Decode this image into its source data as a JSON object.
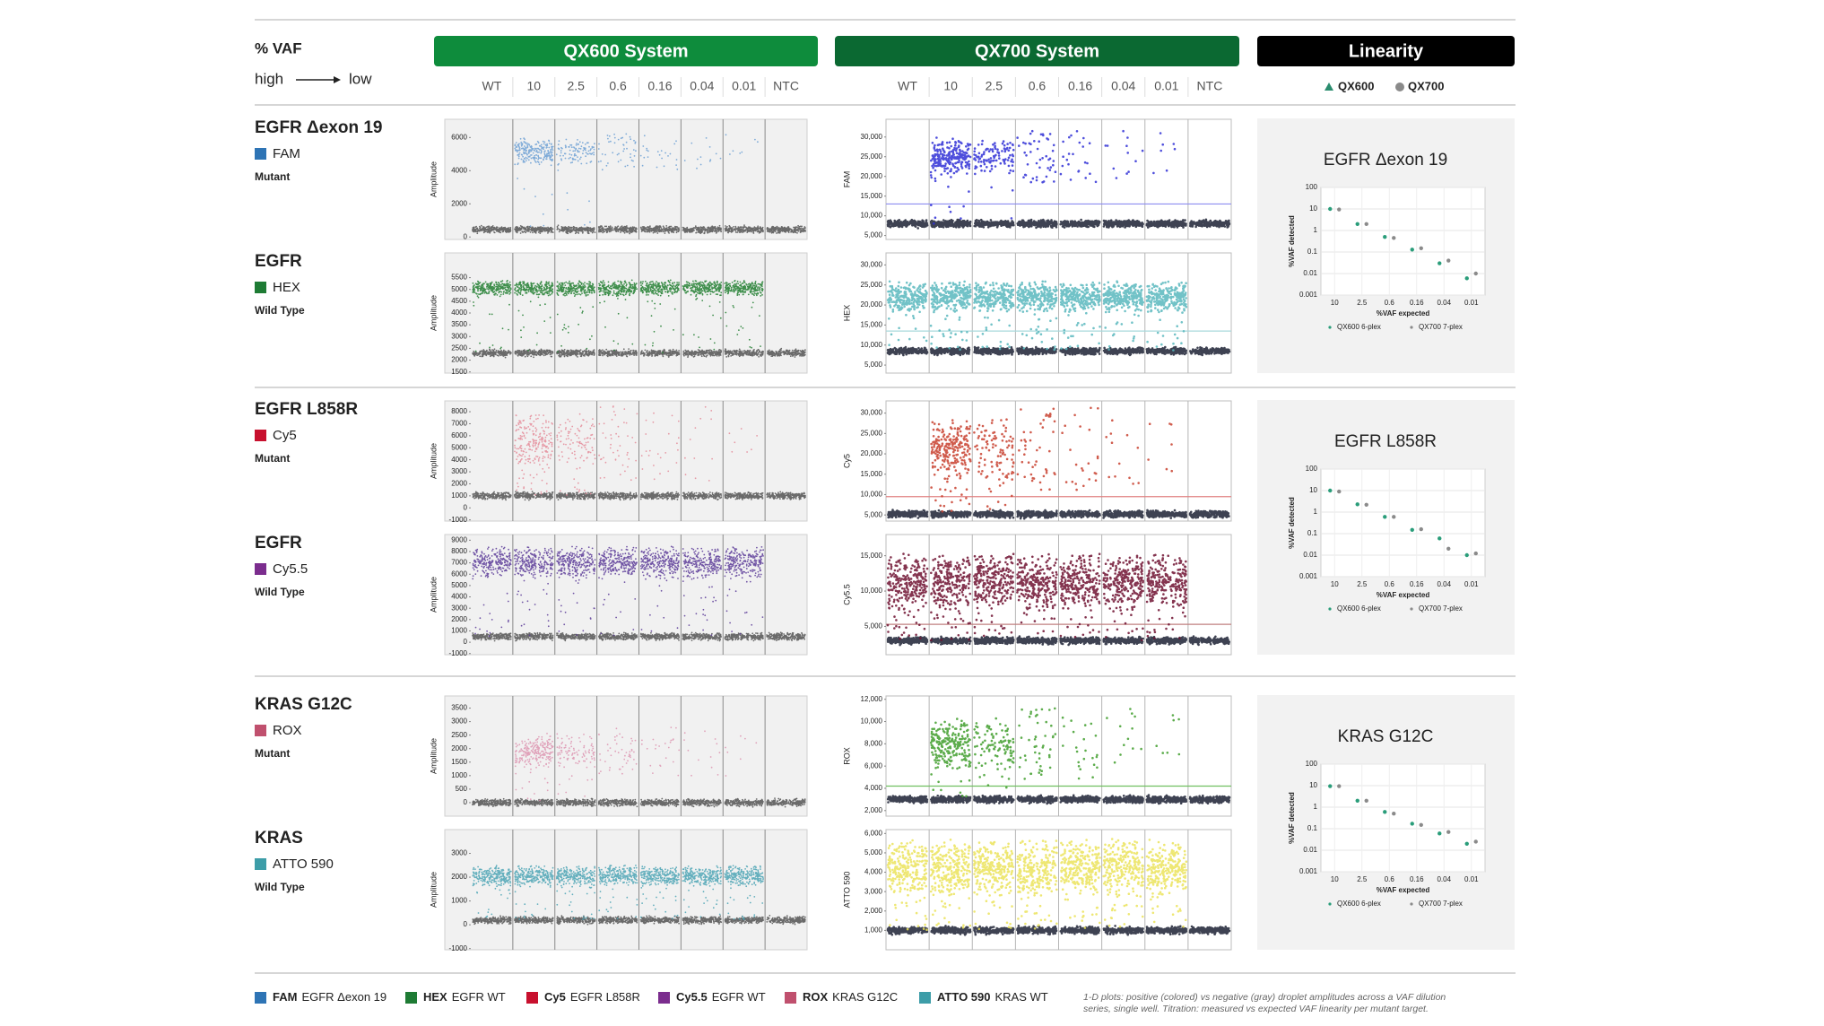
{
  "header": {
    "vaf_label": "% VAF",
    "high": "high",
    "low": "low",
    "systems": [
      {
        "name": "QX600 System",
        "color": "#0e8c3c"
      },
      {
        "name": "QX700 System",
        "color": "#0b6932"
      },
      {
        "name": "Linearity",
        "color": "#000000"
      }
    ],
    "wells": [
      "WT",
      "10",
      "2.5",
      "0.6",
      "0.16",
      "0.04",
      "0.01",
      "NTC"
    ],
    "linearity_legend": [
      {
        "name": "QX600",
        "color": "#2a8c6e"
      },
      {
        "name": "QX700",
        "color": "#8a8a8a"
      }
    ]
  },
  "groups": [
    {
      "targets": [
        {
          "name": "EGFR Δexon 19",
          "dye": "FAM",
          "dye_color": "#2e74b5",
          "type": "Mutant",
          "qx600": {
            "ylabel": "Amplitude",
            "yticks": [
              0,
              2000,
              4000,
              6000
            ],
            "ylim": [
              -150,
              7100
            ],
            "color": "#6b9fd4",
            "positive": [
              4300,
              6000
            ],
            "negative": 450
          },
          "qx700": {
            "ylabel": "FAM",
            "yticks": [
              {
                "value": 5000,
                "label": "5,000"
              },
              {
                "value": 10000,
                "label": "10,000"
              },
              {
                "value": 15000,
                "label": "15,000"
              },
              {
                "value": 20000,
                "label": "20,000"
              },
              {
                "value": 25000,
                "label": "25,000"
              },
              {
                "value": 30000,
                "label": "30,000"
              }
            ],
            "ylim": [
              4000,
              34500
            ],
            "color": "#2f2fd6",
            "positive": [
              20000,
              30000
            ],
            "negative": 8000,
            "threshold": 13000,
            "threshold_color": "#8c8cf0"
          }
        },
        {
          "name": "EGFR",
          "dye": "HEX",
          "dye_color": "#1e7b34",
          "type": "Wild Type",
          "qx600": {
            "ylabel": "Amplitude",
            "yticks": [
              1500,
              2000,
              2500,
              3000,
              3500,
              4000,
              4500,
              5000,
              5500
            ],
            "ylim": [
              1450,
              6550
            ],
            "color": "#1e7d2e",
            "positive": [
              4700,
              5400
            ],
            "negative": 2300
          },
          "qx700": {
            "ylabel": "HEX",
            "yticks": [
              {
                "value": 5000,
                "label": "5,000"
              },
              {
                "value": 10000,
                "label": "10,000"
              },
              {
                "value": 15000,
                "label": "15,000"
              },
              {
                "value": 20000,
                "label": "20,000"
              },
              {
                "value": 25000,
                "label": "25,000"
              },
              {
                "value": 30000,
                "label": "30,000"
              }
            ],
            "ylim": [
              3000,
              33000
            ],
            "color": "#58b7bd",
            "positive": [
              18000,
              26000
            ],
            "negative": 8500,
            "threshold": 13500,
            "threshold_color": "#a8d8dc"
          }
        }
      ],
      "linearity": {
        "title": "EGFR Δexon 19",
        "y_label": "%VAF detected",
        "x_label": "%VAF expected",
        "log_y": true,
        "ylim": [
          0.001,
          100
        ],
        "yticks": [
          0.001,
          0.01,
          0.1,
          1,
          10,
          100
        ],
        "categories": [
          "10",
          "2.5",
          "0.6",
          "0.16",
          "0.04",
          "0.01"
        ],
        "series": [
          {
            "name": "QX600 6-plex",
            "color": "#2a9d7a",
            "values": [
              10,
              2,
              0.5,
              0.13,
              0.03,
              0.006
            ]
          },
          {
            "name": "QX700 7-plex",
            "color": "#8a8a8a",
            "values": [
              9.5,
              2,
              0.45,
              0.15,
              0.04,
              0.01
            ]
          }
        ]
      }
    },
    {
      "targets": [
        {
          "name": "EGFR L858R",
          "dye": "Cy5",
          "dye_color": "#c8102e",
          "type": "Mutant",
          "qx600": {
            "ylabel": "Amplitude",
            "yticks": [
              -1000,
              0,
              1000,
              2000,
              3000,
              4000,
              5000,
              6000,
              7000,
              8000
            ],
            "ylim": [
              -1100,
              8900
            ],
            "color": "#e48a98",
            "positive": [
              3000,
              8000
            ],
            "negative": 1000
          },
          "qx700": {
            "ylabel": "Cy5",
            "yticks": [
              {
                "value": 5000,
                "label": "5,000"
              },
              {
                "value": 10000,
                "label": "10,000"
              },
              {
                "value": 15000,
                "label": "15,000"
              },
              {
                "value": 20000,
                "label": "20,000"
              },
              {
                "value": 25000,
                "label": "25,000"
              },
              {
                "value": 30000,
                "label": "30,000"
              }
            ],
            "ylim": [
              3500,
              33000
            ],
            "color": "#c8402e",
            "positive": [
              13000,
              29000
            ],
            "negative": 5200,
            "threshold": 9500,
            "threshold_color": "#e08080"
          }
        },
        {
          "name": "EGFR",
          "dye": "Cy5.5",
          "dye_color": "#7b2d8e",
          "type": "Wild Type",
          "qx600": {
            "ylabel": "Amplitude",
            "yticks": [
              -1000,
              0,
              1000,
              2000,
              3000,
              4000,
              5000,
              6000,
              7000,
              8000,
              9000
            ],
            "ylim": [
              -1100,
              9500
            ],
            "color": "#5b3a98",
            "positive": [
              5500,
              8500
            ],
            "negative": 500
          },
          "qx700": {
            "ylabel": "Cy5.5",
            "yticks": [
              {
                "value": 5000,
                "label": "5,000"
              },
              {
                "value": 10000,
                "label": "10,000"
              },
              {
                "value": 15000,
                "label": "15,000"
              }
            ],
            "ylim": [
              1000,
              18000
            ],
            "color": "#6e1030",
            "positive": [
              7000,
              15500
            ],
            "negative": 3000,
            "threshold": 5300,
            "threshold_color": "#c08080"
          }
        }
      ],
      "linearity": {
        "title": "EGFR L858R",
        "y_label": "%VAF detected",
        "x_label": "%VAF expected",
        "log_y": true,
        "ylim": [
          0.001,
          100
        ],
        "yticks": [
          0.001,
          0.01,
          0.1,
          1,
          10,
          100
        ],
        "categories": [
          "10",
          "2.5",
          "0.6",
          "0.16",
          "0.04",
          "0.01"
        ],
        "series": [
          {
            "name": "QX600 6-plex",
            "color": "#2a9d7a",
            "values": [
              10,
              2.3,
              0.6,
              0.15,
              0.06,
              0.01
            ]
          },
          {
            "name": "QX700 7-plex",
            "color": "#8a8a8a",
            "values": [
              9,
              2.2,
              0.6,
              0.16,
              0.02,
              0.012
            ]
          }
        ]
      }
    },
    {
      "targets": [
        {
          "name": "KRAS G12C",
          "dye": "ROX",
          "dye_color": "#c0506e",
          "type": "Mutant",
          "qx600": {
            "ylabel": "Amplitude",
            "yticks": [
              0,
              500,
              1000,
              1500,
              2000,
              2500,
              3000,
              3500
            ],
            "ylim": [
              -500,
              3950
            ],
            "color": "#dd94b0",
            "positive": [
              1200,
              2600
            ],
            "negative": 0
          },
          "qx700": {
            "ylabel": "ROX",
            "yticks": [
              {
                "value": 2000,
                "label": "2,000"
              },
              {
                "value": 4000,
                "label": "4,000"
              },
              {
                "value": 6000,
                "label": "6,000"
              },
              {
                "value": 8000,
                "label": "8,000"
              },
              {
                "value": 10000,
                "label": "10,000"
              },
              {
                "value": 12000,
                "label": "12,000"
              }
            ],
            "ylim": [
              1500,
              12300
            ],
            "color": "#3f9e2c",
            "positive": [
              5500,
              10500
            ],
            "negative": 3000,
            "threshold": 4200,
            "threshold_color": "#70c060"
          }
        },
        {
          "name": "KRAS",
          "dye": "ATTO 590",
          "dye_color": "#3d9da8",
          "type": "Wild Type",
          "qx600": {
            "ylabel": "Amplitude",
            "yticks": [
              -1000,
              0,
              1000,
              2000,
              3000
            ],
            "ylim": [
              -1050,
              4000
            ],
            "color": "#4aa3b4",
            "positive": [
              1600,
              2500
            ],
            "negative": 200
          },
          "qx700": {
            "ylabel": "ATTO 590",
            "yticks": [
              {
                "value": 1000,
                "label": "1,000"
              },
              {
                "value": 2000,
                "label": "2,000"
              },
              {
                "value": 3000,
                "label": "3,000"
              },
              {
                "value": 4000,
                "label": "4,000"
              },
              {
                "value": 5000,
                "label": "5,000"
              },
              {
                "value": 6000,
                "label": "6,000"
              }
            ],
            "ylim": [
              0,
              6200
            ],
            "color": "#ebe35a",
            "positive": [
              2600,
              5800
            ],
            "negative": 1000
          }
        }
      ],
      "linearity": {
        "title": "KRAS G12C",
        "y_label": "%VAF detected",
        "x_label": "%VAF expected",
        "log_y": true,
        "ylim": [
          0.001,
          100
        ],
        "yticks": [
          0.001,
          0.01,
          0.1,
          1,
          10,
          100
        ],
        "categories": [
          "10",
          "2.5",
          "0.6",
          "0.16",
          "0.04",
          "0.01"
        ],
        "series": [
          {
            "name": "QX600 6-plex",
            "color": "#2a9d7a",
            "values": [
              9.5,
              2,
              0.6,
              0.17,
              0.06,
              0.02
            ]
          },
          {
            "name": "QX700 7-plex",
            "color": "#8a8a8a",
            "values": [
              9.5,
              2,
              0.5,
              0.15,
              0.07,
              0.025
            ]
          }
        ]
      }
    }
  ],
  "footer": {
    "items": [
      {
        "dye": "FAM",
        "target": "EGFR Δexon 19",
        "color": "#2e74b5"
      },
      {
        "dye": "HEX",
        "target": "EGFR WT",
        "color": "#1e7b34"
      },
      {
        "dye": "Cy5",
        "target": "EGFR L858R",
        "color": "#c8102e"
      },
      {
        "dye": "Cy5.5",
        "target": "EGFR WT",
        "color": "#7b2d8e"
      },
      {
        "dye": "ROX",
        "target": "KRAS G12C",
        "color": "#c0506e"
      },
      {
        "dye": "ATTO 590",
        "target": "KRAS WT",
        "color": "#3d9da8"
      }
    ],
    "note": [
      "1-D plots: positive (colored) vs negative (gray) droplet amplitudes across a VAF dilution",
      "series, single well. Titration: measured vs expected VAF linearity per mutant target."
    ]
  }
}
